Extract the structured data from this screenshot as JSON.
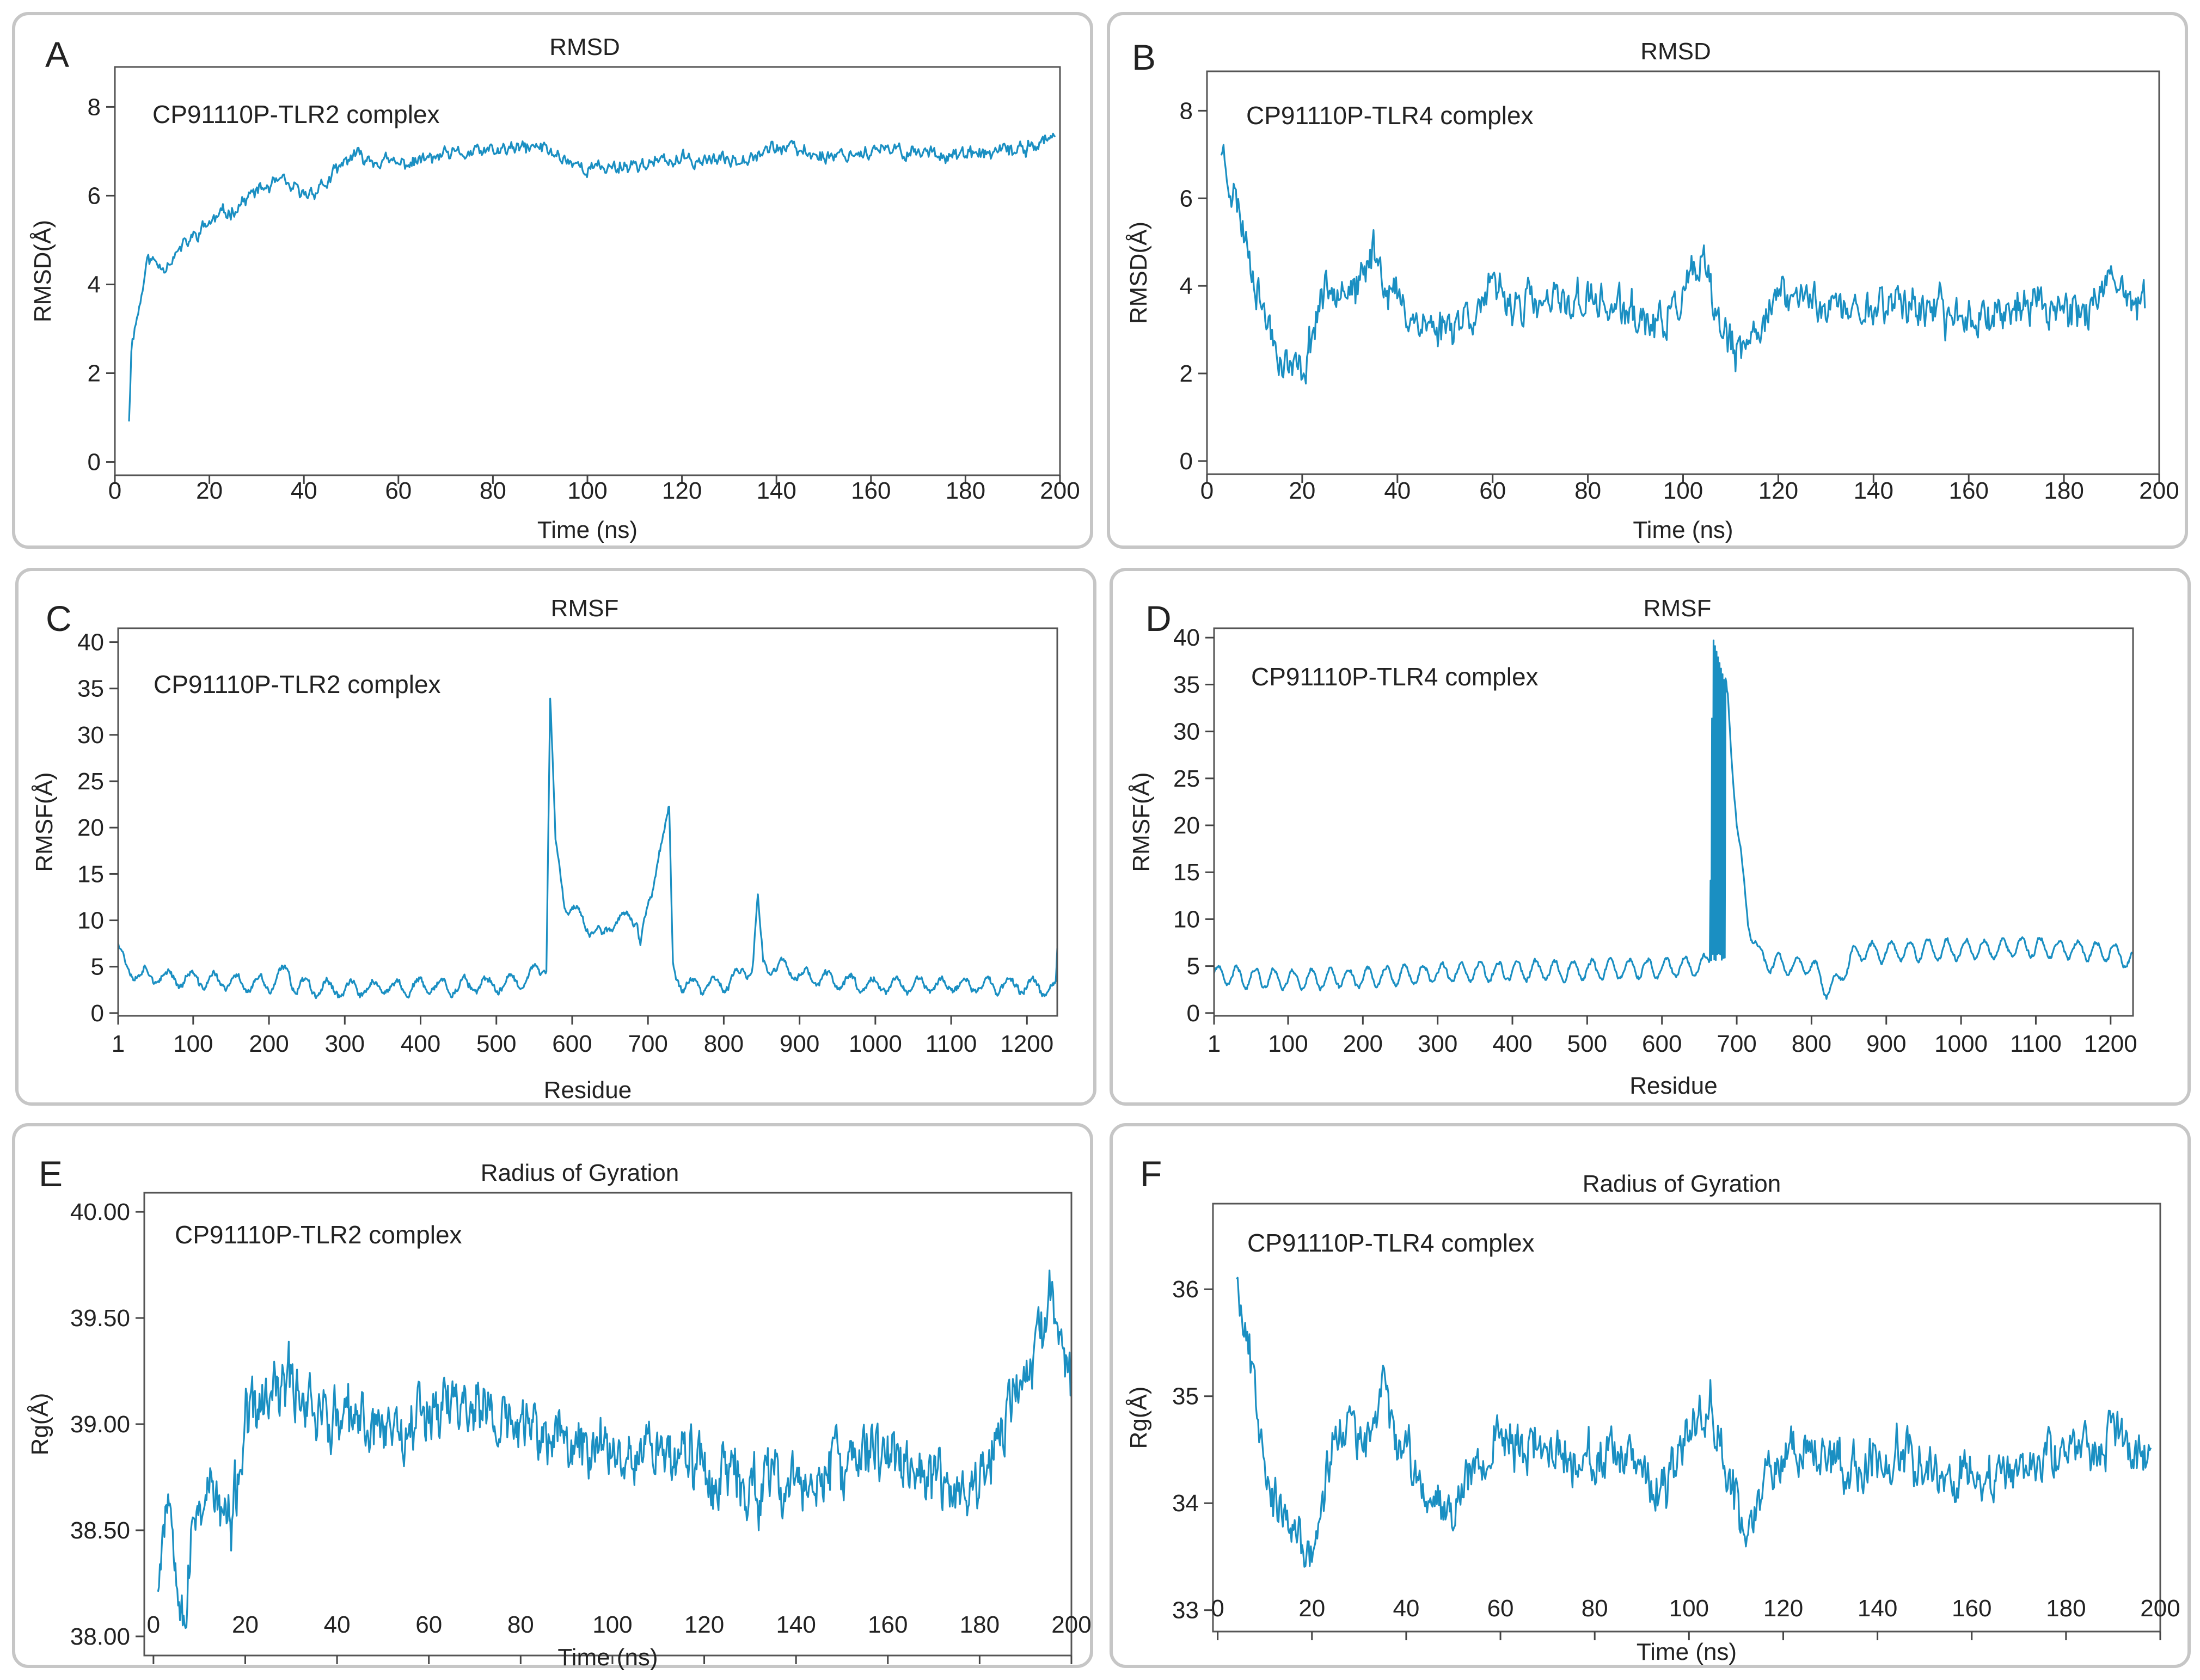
{
  "chart_data": [
    {
      "id": "A",
      "type": "line",
      "title": "RMSD",
      "xlabel": "Time (ns)",
      "ylabel": "RMSD(Å)",
      "xlim": [
        0,
        200
      ],
      "ylim": [
        -0.3,
        8.9
      ],
      "xticks": [
        0,
        20,
        40,
        60,
        80,
        100,
        120,
        140,
        160,
        180,
        200
      ],
      "yticks": [
        0,
        2,
        4,
        6,
        8
      ],
      "ytick_decimals": 0,
      "annotation": "CP91110P-TLR2 complex",
      "color": "#1a8fc2",
      "grid": false,
      "series": [
        {
          "x_range": [
            3,
            199
          ],
          "points": 820,
          "seed": 11,
          "noise": 0.16,
          "keypoints": [
            [
              3,
              1.0
            ],
            [
              3.6,
              2.8
            ],
            [
              5,
              3.4
            ],
            [
              7,
              4.6
            ],
            [
              10,
              4.4
            ],
            [
              15,
              4.9
            ],
            [
              20,
              5.4
            ],
            [
              25,
              5.7
            ],
            [
              30,
              6.1
            ],
            [
              35,
              6.3
            ],
            [
              40,
              6.0
            ],
            [
              45,
              6.3
            ],
            [
              50,
              6.9
            ],
            [
              60,
              6.7
            ],
            [
              70,
              6.9
            ],
            [
              80,
              7.0
            ],
            [
              90,
              7.1
            ],
            [
              100,
              6.6
            ],
            [
              110,
              6.7
            ],
            [
              120,
              6.8
            ],
            [
              130,
              6.8
            ],
            [
              140,
              7.1
            ],
            [
              150,
              6.9
            ],
            [
              160,
              7.0
            ],
            [
              170,
              7.0
            ],
            [
              180,
              6.9
            ],
            [
              190,
              7.0
            ],
            [
              199,
              7.3
            ]
          ]
        }
      ]
    },
    {
      "id": "B",
      "type": "line",
      "title": "RMSD",
      "xlabel": "Time (ns)",
      "ylabel": "RMSD(Å)",
      "xlim": [
        0,
        200
      ],
      "ylim": [
        -0.3,
        8.9
      ],
      "xticks": [
        0,
        20,
        40,
        60,
        80,
        100,
        120,
        140,
        160,
        180,
        200
      ],
      "yticks": [
        0,
        2,
        4,
        6,
        8
      ],
      "ytick_decimals": 0,
      "annotation": "CP91110P-TLR4 complex",
      "color": "#1a8fc2",
      "grid": false,
      "series": [
        {
          "x_range": [
            3,
            197
          ],
          "points": 820,
          "seed": 23,
          "noise": 0.45,
          "keypoints": [
            [
              3,
              7.2
            ],
            [
              5,
              6.4
            ],
            [
              8,
              5.2
            ],
            [
              12,
              3.4
            ],
            [
              16,
              2.3
            ],
            [
              20,
              2.0
            ],
            [
              24,
              3.8
            ],
            [
              28,
              4.2
            ],
            [
              32,
              3.8
            ],
            [
              35,
              4.9
            ],
            [
              38,
              4.0
            ],
            [
              42,
              3.4
            ],
            [
              48,
              3.0
            ],
            [
              55,
              3.4
            ],
            [
              60,
              3.8
            ],
            [
              70,
              3.5
            ],
            [
              80,
              3.7
            ],
            [
              90,
              3.3
            ],
            [
              95,
              3.0
            ],
            [
              100,
              3.8
            ],
            [
              104,
              4.4
            ],
            [
              108,
              3.0
            ],
            [
              112,
              2.3
            ],
            [
              118,
              3.6
            ],
            [
              125,
              3.8
            ],
            [
              135,
              3.4
            ],
            [
              145,
              3.7
            ],
            [
              155,
              3.3
            ],
            [
              165,
              3.4
            ],
            [
              175,
              3.6
            ],
            [
              185,
              3.5
            ],
            [
              190,
              3.9
            ],
            [
              197,
              3.5
            ]
          ]
        }
      ]
    },
    {
      "id": "C",
      "type": "line",
      "title": "RMSF",
      "xlabel": "Residue",
      "ylabel": "RMSF(Å)",
      "xlim": [
        1,
        1240
      ],
      "ylim": [
        -0.3,
        41.5
      ],
      "xticks": [
        1,
        100,
        200,
        300,
        400,
        500,
        600,
        700,
        800,
        900,
        1000,
        1100,
        1200
      ],
      "yticks": [
        0,
        5,
        10,
        15,
        20,
        25,
        30,
        35,
        40
      ],
      "ytick_decimals": 0,
      "annotation": "CP91110P-TLR2 complex",
      "color": "#1a8fc2",
      "grid": false,
      "series": [
        {
          "x_range": [
            1,
            1240
          ],
          "points": 1240,
          "seed": 37,
          "noise": 0.35,
          "keypoints": [
            [
              1,
              7.5
            ],
            [
              10,
              5.0
            ],
            [
              40,
              4.0
            ],
            [
              100,
              3.6
            ],
            [
              200,
              3.0
            ],
            [
              225,
              4.5
            ],
            [
              235,
              3.0
            ],
            [
              300,
              2.6
            ],
            [
              400,
              2.8
            ],
            [
              500,
              3.0
            ],
            [
              540,
              3.8
            ],
            [
              566,
              5.2
            ],
            [
              571,
              34.0
            ],
            [
              578,
              18.0
            ],
            [
              590,
              12.0
            ],
            [
              620,
              9.5
            ],
            [
              640,
              8.0
            ],
            [
              650,
              9.8
            ],
            [
              685,
              10.5
            ],
            [
              690,
              7.5
            ],
            [
              705,
              13.0
            ],
            [
              715,
              18.0
            ],
            [
              728,
              21.5
            ],
            [
              733,
              5.0
            ],
            [
              745,
              3.0
            ],
            [
              800,
              3.0
            ],
            [
              838,
              5.0
            ],
            [
              845,
              12.0
            ],
            [
              852,
              5.0
            ],
            [
              880,
              5.0
            ],
            [
              900,
              4.0
            ],
            [
              1000,
              3.0
            ],
            [
              1100,
              3.0
            ],
            [
              1200,
              3.0
            ],
            [
              1238,
              2.5
            ],
            [
              1240,
              6.0
            ]
          ],
          "ripple": {
            "amplitude": 0.8,
            "period": 30
          }
        }
      ]
    },
    {
      "id": "D",
      "type": "line",
      "title": "RMSF",
      "xlabel": "Residue",
      "ylabel": "RMSF(Å)",
      "xlim": [
        1,
        1230
      ],
      "ylim": [
        -0.3,
        41.0
      ],
      "xticks": [
        1,
        100,
        200,
        300,
        400,
        500,
        600,
        700,
        800,
        900,
        1000,
        1100,
        1200
      ],
      "yticks": [
        0,
        5,
        10,
        15,
        20,
        25,
        30,
        35,
        40
      ],
      "ytick_decimals": 0,
      "annotation": "CP91110P-TLR4 complex",
      "color": "#1a8fc2",
      "grid": false,
      "series": [
        {
          "x_range": [
            1,
            1230
          ],
          "points": 1230,
          "seed": 41,
          "noise": 0.25,
          "keypoints": [
            [
              1,
              4.0
            ],
            [
              100,
              3.6
            ],
            [
              200,
              3.8
            ],
            [
              300,
              4.2
            ],
            [
              400,
              4.5
            ],
            [
              500,
              4.6
            ],
            [
              600,
              4.8
            ],
            [
              650,
              5.0
            ],
            [
              664,
              5.5
            ],
            [
              668,
              40.0
            ],
            [
              688,
              34.0
            ],
            [
              700,
              20.0
            ],
            [
              715,
              10.0
            ],
            [
              730,
              6.0
            ],
            [
              760,
              5.0
            ],
            [
              800,
              5.2
            ],
            [
              820,
              2.5
            ],
            [
              830,
              3.0
            ],
            [
              860,
              6.5
            ],
            [
              900,
              6.5
            ],
            [
              1000,
              6.8
            ],
            [
              1100,
              7.0
            ],
            [
              1200,
              6.5
            ],
            [
              1230,
              5.5
            ]
          ],
          "ripple": {
            "amplitude": 1.0,
            "period": 25
          },
          "dense_band": [
            664,
            684
          ]
        }
      ]
    },
    {
      "id": "E",
      "type": "line",
      "title": "Radius of Gyration",
      "xlabel": "Time (ns)",
      "ylabel": "Rg(Å)",
      "xlim": [
        -2,
        200
      ],
      "ylim": [
        37.91,
        40.09
      ],
      "xticks": [
        0,
        20,
        40,
        60,
        80,
        100,
        120,
        140,
        160,
        180,
        200
      ],
      "yticks": [
        38.0,
        38.5,
        39.0,
        39.5,
        40.0
      ],
      "ytick_decimals": 2,
      "annotation": "CP91110P-TLR2 complex",
      "color": "#1a8fc2",
      "grid": false,
      "series": [
        {
          "x_range": [
            1,
            200
          ],
          "points": 1000,
          "seed": 53,
          "noise": 0.14,
          "keypoints": [
            [
              1,
              38.3
            ],
            [
              3,
              38.7
            ],
            [
              5,
              38.4
            ],
            [
              7,
              38.1
            ],
            [
              9,
              38.6
            ],
            [
              12,
              38.7
            ],
            [
              17,
              38.5
            ],
            [
              20,
              39.0
            ],
            [
              25,
              39.1
            ],
            [
              30,
              39.2
            ],
            [
              35,
              39.1
            ],
            [
              40,
              39.0
            ],
            [
              45,
              39.0
            ],
            [
              50,
              39.0
            ],
            [
              55,
              39.0
            ],
            [
              60,
              39.1
            ],
            [
              65,
              39.1
            ],
            [
              70,
              39.1
            ],
            [
              75,
              39.0
            ],
            [
              80,
              39.0
            ],
            [
              90,
              38.9
            ],
            [
              100,
              38.9
            ],
            [
              110,
              38.9
            ],
            [
              120,
              38.8
            ],
            [
              130,
              38.7
            ],
            [
              140,
              38.7
            ],
            [
              150,
              38.8
            ],
            [
              160,
              38.9
            ],
            [
              170,
              38.7
            ],
            [
              180,
              38.7
            ],
            [
              185,
              39.0
            ],
            [
              190,
              39.2
            ],
            [
              195,
              39.5
            ],
            [
              198,
              39.5
            ],
            [
              200,
              39.2
            ]
          ]
        }
      ]
    },
    {
      "id": "F",
      "type": "line",
      "title": "Radius of Gyration",
      "xlabel": "Time (ns)",
      "ylabel": "Rg(Å)",
      "xlim": [
        -1,
        200
      ],
      "ylim": [
        32.8,
        36.8
      ],
      "xticks": [
        0,
        20,
        40,
        60,
        80,
        100,
        120,
        140,
        160,
        180,
        200
      ],
      "yticks": [
        33,
        34,
        35,
        36
      ],
      "ytick_decimals": 0,
      "annotation": "CP91110P-TLR4 complex",
      "color": "#1a8fc2",
      "grid": false,
      "series": [
        {
          "x_range": [
            4,
            198
          ],
          "points": 850,
          "seed": 67,
          "noise": 0.22,
          "keypoints": [
            [
              4,
              36.2
            ],
            [
              6,
              35.6
            ],
            [
              9,
              34.8
            ],
            [
              12,
              34.0
            ],
            [
              16,
              33.7
            ],
            [
              20,
              33.5
            ],
            [
              24,
              34.5
            ],
            [
              28,
              34.8
            ],
            [
              31,
              34.4
            ],
            [
              35,
              35.1
            ],
            [
              39,
              34.5
            ],
            [
              44,
              34.1
            ],
            [
              50,
              34.0
            ],
            [
              55,
              34.4
            ],
            [
              60,
              34.6
            ],
            [
              70,
              34.5
            ],
            [
              80,
              34.4
            ],
            [
              90,
              34.3
            ],
            [
              95,
              34.0
            ],
            [
              100,
              34.7
            ],
            [
              105,
              35.0
            ],
            [
              108,
              34.3
            ],
            [
              112,
              33.7
            ],
            [
              118,
              34.4
            ],
            [
              125,
              34.6
            ],
            [
              135,
              34.3
            ],
            [
              145,
              34.5
            ],
            [
              155,
              34.3
            ],
            [
              165,
              34.2
            ],
            [
              175,
              34.4
            ],
            [
              185,
              34.5
            ],
            [
              190,
              34.7
            ],
            [
              198,
              34.3
            ]
          ]
        }
      ]
    }
  ]
}
